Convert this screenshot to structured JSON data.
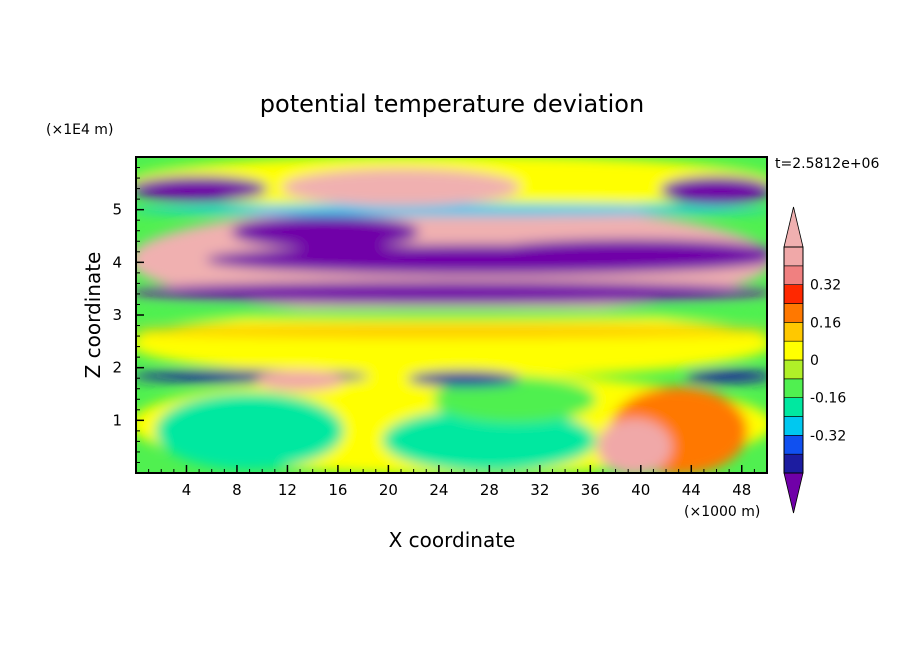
{
  "chart_data": {
    "type": "heatmap",
    "title": "potential temperature deviation",
    "xlabel": "X coordinate",
    "ylabel": "Z coordinate",
    "x_unit_label": "(×1000 m)",
    "y_unit_label": "(×1E4 m)",
    "time_label": "t=2.5812e+06",
    "xlim": [
      0,
      50
    ],
    "ylim": [
      0,
      6
    ],
    "x_ticks": [
      4,
      8,
      12,
      16,
      20,
      24,
      28,
      32,
      36,
      40,
      44,
      48
    ],
    "x_minor_step": 1,
    "y_ticks": [
      1,
      2,
      3,
      4,
      5
    ],
    "y_minor_step": 0.2,
    "colorbar": {
      "levels": [
        -0.48,
        -0.4,
        -0.32,
        -0.24,
        -0.16,
        -0.08,
        0,
        0.08,
        0.16,
        0.24,
        0.32,
        0.4,
        0.48
      ],
      "colors": [
        "#7000a8",
        "#1c1ca0",
        "#1050f0",
        "#00c8f0",
        "#00e8a0",
        "#50f050",
        "#b0f028",
        "#ffff00",
        "#ffc800",
        "#ff7800",
        "#ff2800",
        "#f08080",
        "#f0a8a8",
        "#f0b0b0"
      ],
      "tick_labels": [
        "0.32",
        "0.16",
        "0",
        "-0.16",
        "-0.32"
      ],
      "tick_values": [
        0.32,
        0.16,
        0,
        -0.16,
        -0.32
      ],
      "extend": "both"
    },
    "regions": [
      {
        "xr": [
          0,
          50
        ],
        "zr": [
          0,
          1.85
        ],
        "v": 0.05
      },
      {
        "xr": [
          0,
          50
        ],
        "zr": [
          1.85,
          3.05
        ],
        "v": 0.03
      },
      {
        "xr": [
          0,
          50
        ],
        "zr": [
          3.05,
          5.05
        ],
        "v": 0.52
      },
      {
        "xr": [
          0,
          50
        ],
        "zr": [
          5.05,
          6.0
        ],
        "v": 0.03
      },
      {
        "xr": [
          2,
          16
        ],
        "zr": [
          0.1,
          1.5
        ],
        "v": -0.2
      },
      {
        "xr": [
          20,
          36
        ],
        "zr": [
          0.05,
          1.2
        ],
        "v": -0.2
      },
      {
        "xr": [
          24,
          36
        ],
        "zr": [
          1.0,
          1.8
        ],
        "v": -0.12
      },
      {
        "xr": [
          38,
          48
        ],
        "zr": [
          0.0,
          1.6
        ],
        "v": 0.2
      },
      {
        "xr": [
          37,
          42
        ],
        "zr": [
          0.0,
          1.0
        ],
        "v": 0.4
      },
      {
        "xr": [
          0,
          18
        ],
        "zr": [
          1.75,
          1.92
        ],
        "v": -0.45
      },
      {
        "xr": [
          10,
          16
        ],
        "zr": [
          1.6,
          1.92
        ],
        "v": 0.45
      },
      {
        "xr": [
          22,
          30
        ],
        "zr": [
          1.68,
          1.9
        ],
        "v": -0.45
      },
      {
        "xr": [
          44,
          50
        ],
        "zr": [
          1.75,
          1.92
        ],
        "v": -0.45
      },
      {
        "xr": [
          0,
          50
        ],
        "zr": [
          2.6,
          2.78
        ],
        "v": 0.12
      },
      {
        "xr": [
          0,
          50
        ],
        "zr": [
          2.95,
          3.1
        ],
        "v": -0.12
      },
      {
        "xr": [
          0,
          50
        ],
        "zr": [
          3.25,
          3.6
        ],
        "v": -0.5
      },
      {
        "xr": [
          6,
          50
        ],
        "zr": [
          3.8,
          4.3
        ],
        "v": -0.5
      },
      {
        "xr": [
          8,
          22
        ],
        "zr": [
          4.3,
          4.85
        ],
        "v": -0.5
      },
      {
        "xr": [
          28,
          50
        ],
        "zr": [
          4.0,
          4.4
        ],
        "v": -0.5
      },
      {
        "xr": [
          0,
          50
        ],
        "zr": [
          4.92,
          5.08
        ],
        "v": -0.25
      },
      {
        "xr": [
          0,
          10
        ],
        "zr": [
          5.2,
          5.6
        ],
        "v": -0.5
      },
      {
        "xr": [
          12,
          30
        ],
        "zr": [
          5.1,
          5.75
        ],
        "v": 0.5
      },
      {
        "xr": [
          42,
          50
        ],
        "zr": [
          5.15,
          5.6
        ],
        "v": -0.5
      }
    ]
  }
}
